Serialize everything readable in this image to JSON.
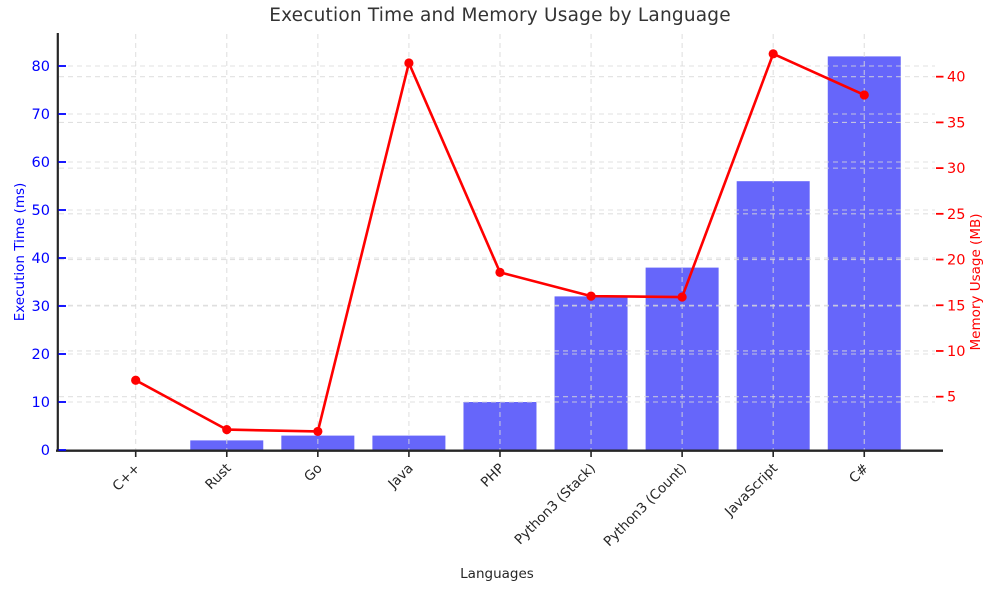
{
  "chart_data": {
    "type": "combo-bar-line",
    "title": "Execution Time and Memory Usage by Language",
    "xlabel": "Languages",
    "categories": [
      "C++",
      "Rust",
      "Go",
      "Java",
      "PHP",
      "Python3 (Stack)",
      "Python3 (Count)",
      "JavaScript",
      "C#"
    ],
    "series": [
      {
        "name": "Execution Time",
        "unit": "ms",
        "type": "bar",
        "axis": "left",
        "color": "#6666fa",
        "values": [
          0,
          2,
          3,
          3,
          10,
          32,
          38,
          56,
          82
        ]
      },
      {
        "name": "Memory Usage",
        "unit": "MB",
        "type": "line",
        "axis": "right",
        "color": "#ff0000",
        "values": [
          6.8,
          1.4,
          1.2,
          41.5,
          18.6,
          16.0,
          15.9,
          42.5,
          38.0
        ]
      }
    ],
    "left_axis": {
      "label": "Execution Time (ms)",
      "color": "#0000ff",
      "ticks": [
        0,
        10,
        20,
        30,
        40,
        50,
        60,
        70,
        80
      ],
      "range": [
        0,
        87
      ]
    },
    "right_axis": {
      "label": "Memory Usage (MB)",
      "color": "#ff0000",
      "ticks": [
        5,
        10,
        15,
        20,
        25,
        30,
        35,
        40
      ],
      "range": [
        0,
        45
      ]
    },
    "grid": {
      "visible": true,
      "style": "dashed",
      "color": "#d9d9d9"
    },
    "axis_line_color": "#262626",
    "background": "#ffffff",
    "legend_position": "none"
  }
}
